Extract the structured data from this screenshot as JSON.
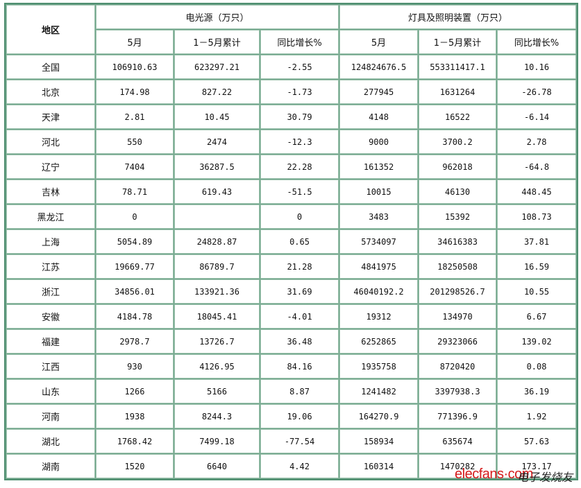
{
  "header": {
    "region": "地区",
    "group1": "电光源（万只）",
    "group2": "灯具及照明装置（万只）",
    "sub": [
      "5月",
      "1－5月累计",
      "同比增长%",
      "5月",
      "1－5月累计",
      "同比增长%"
    ]
  },
  "rows": [
    [
      "全国",
      "106910.63",
      "623297.21",
      "-2.55",
      "124824676.5",
      "553311417.1",
      "10.16"
    ],
    [
      "北京",
      "174.98",
      "827.22",
      "-1.73",
      "277945",
      "1631264",
      "-26.78"
    ],
    [
      "天津",
      "2.81",
      "10.45",
      "30.79",
      "4148",
      "16522",
      "-6.14"
    ],
    [
      "河北",
      "550",
      "2474",
      "-12.3",
      "9000",
      "3700.2",
      "2.78"
    ],
    [
      "辽宁",
      "7404",
      "36287.5",
      "22.28",
      "161352",
      "962018",
      "-64.8"
    ],
    [
      "吉林",
      "78.71",
      "619.43",
      "-51.5",
      "10015",
      "46130",
      "448.45"
    ],
    [
      "黑龙江",
      "0",
      "",
      "0",
      "3483",
      "15392",
      "108.73"
    ],
    [
      "上海",
      "5054.89",
      "24828.87",
      "0.65",
      "5734097",
      "34616383",
      "37.81"
    ],
    [
      "江苏",
      "19669.77",
      "86789.7",
      "21.28",
      "4841975",
      "18250508",
      "16.59"
    ],
    [
      "浙江",
      "34856.01",
      "133921.36",
      "31.69",
      "46040192.2",
      "201298526.7",
      "10.55"
    ],
    [
      "安徽",
      "4184.78",
      "18045.41",
      "-4.01",
      "19312",
      "134970",
      "6.67"
    ],
    [
      "福建",
      "2978.7",
      "13726.7",
      "36.48",
      "6252865",
      "29323066",
      "139.02"
    ],
    [
      "江西",
      "930",
      "4126.95",
      "84.16",
      "1935758",
      "8720420",
      "0.08"
    ],
    [
      "山东",
      "1266",
      "5166",
      "8.87",
      "1241482",
      "3397938.3",
      "36.19"
    ],
    [
      "河南",
      "1938",
      "8244.3",
      "19.06",
      "164270.9",
      "771396.9",
      "1.92"
    ],
    [
      "湖北",
      "1768.42",
      "7499.18",
      "-77.54",
      "158934",
      "635674",
      "57.63"
    ],
    [
      "湖南",
      "1520",
      "6640",
      "4.42",
      "160314",
      "1470282",
      "173.17"
    ]
  ],
  "watermark": {
    "brand": "elecfans·com",
    "cn": "电子发烧友"
  }
}
